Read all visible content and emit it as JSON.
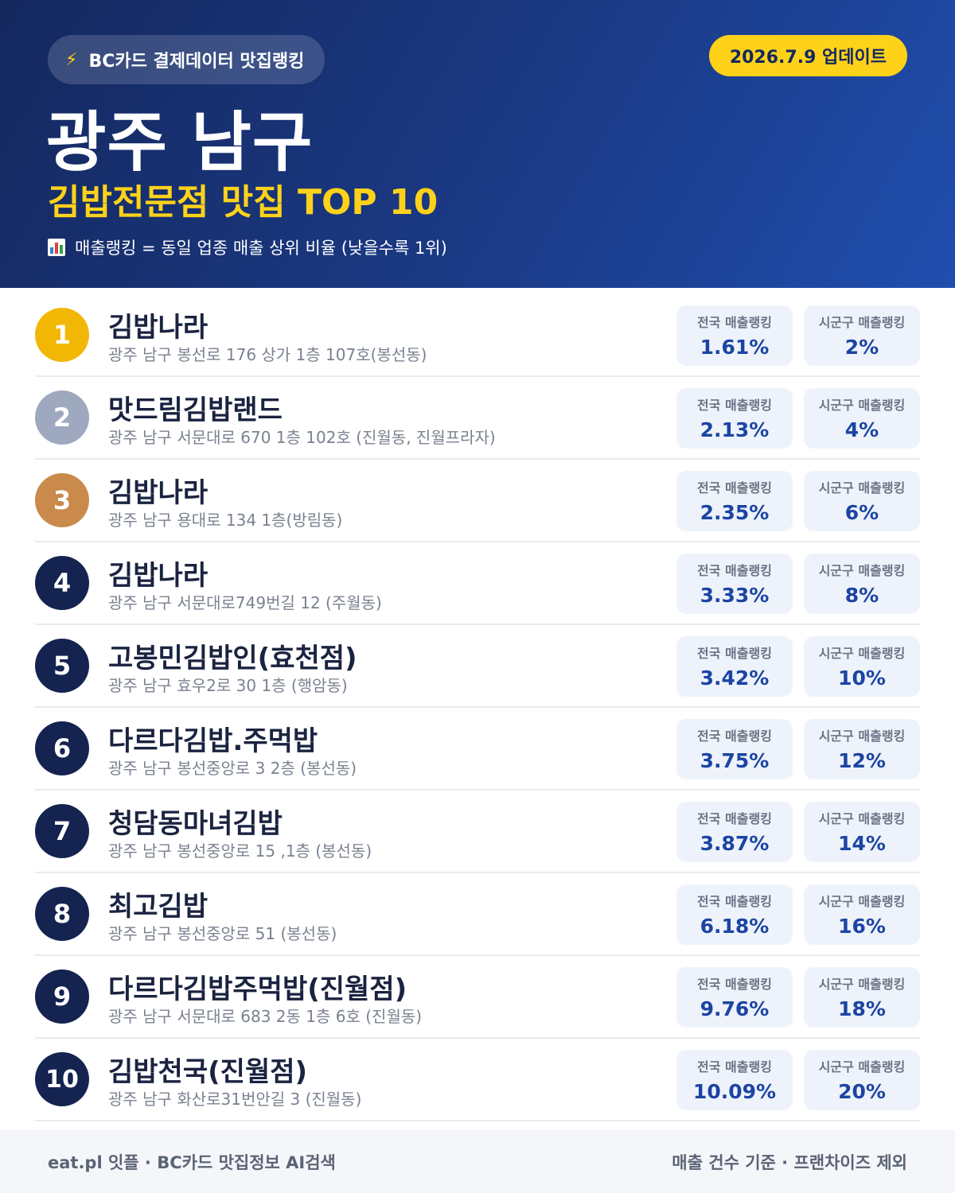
{
  "header": {
    "source_label": "BC카드 결제데이터 맛집랭킹",
    "update_label": "2026.7.9 업데이트",
    "region": "광주 남구",
    "category": "김밥전문점 맛집 TOP 10",
    "ranking_note": "매출랭킹 = 동일 업종 매출 상위 비율 (낮을수록 1위)"
  },
  "labels": {
    "national": "전국 매출랭킹",
    "local": "시군구 매출랭킹"
  },
  "colors": {
    "gold": "#f2b705",
    "silver": "#9ea9c0",
    "bronze": "#c98a4b",
    "navy": "#14234f",
    "accent_yellow": "#ffd21a"
  },
  "items": [
    {
      "rank": "1",
      "name": "김밥나라",
      "address": "광주 남구 봉선로 176 상가 1층 107호(봉선동)",
      "national": "1.61%",
      "local": "2%"
    },
    {
      "rank": "2",
      "name": "맛드림김밥랜드",
      "address": "광주 남구 서문대로 670 1층 102호 (진월동, 진월프라자)",
      "national": "2.13%",
      "local": "4%"
    },
    {
      "rank": "3",
      "name": "김밥나라",
      "address": "광주 남구 용대로 134 1층(방림동)",
      "national": "2.35%",
      "local": "6%"
    },
    {
      "rank": "4",
      "name": "김밥나라",
      "address": "광주 남구 서문대로749번길 12 (주월동)",
      "national": "3.33%",
      "local": "8%"
    },
    {
      "rank": "5",
      "name": "고봉민김밥인(효천점)",
      "address": "광주 남구 효우2로 30 1층 (행암동)",
      "national": "3.42%",
      "local": "10%"
    },
    {
      "rank": "6",
      "name": "다르다김밥.주먹밥",
      "address": "광주 남구 봉선중앙로 3 2층 (봉선동)",
      "national": "3.75%",
      "local": "12%"
    },
    {
      "rank": "7",
      "name": "청담동마녀김밥",
      "address": "광주 남구 봉선중앙로 15 ,1층 (봉선동)",
      "national": "3.87%",
      "local": "14%"
    },
    {
      "rank": "8",
      "name": "최고김밥",
      "address": "광주 남구 봉선중앙로 51 (봉선동)",
      "national": "6.18%",
      "local": "16%"
    },
    {
      "rank": "9",
      "name": "다르다김밥주먹밥(진월점)",
      "address": "광주 남구 서문대로 683 2동 1층 6호 (진월동)",
      "national": "9.76%",
      "local": "18%"
    },
    {
      "rank": "10",
      "name": "김밥천국(진월점)",
      "address": "광주 남구 화산로31번안길 3 (진월동)",
      "national": "10.09%",
      "local": "20%"
    }
  ],
  "footer": {
    "left": "eat.pl 잇플 · BC카드 맛집정보 AI검색",
    "right": "매출 건수 기준 · 프랜차이즈 제외"
  }
}
